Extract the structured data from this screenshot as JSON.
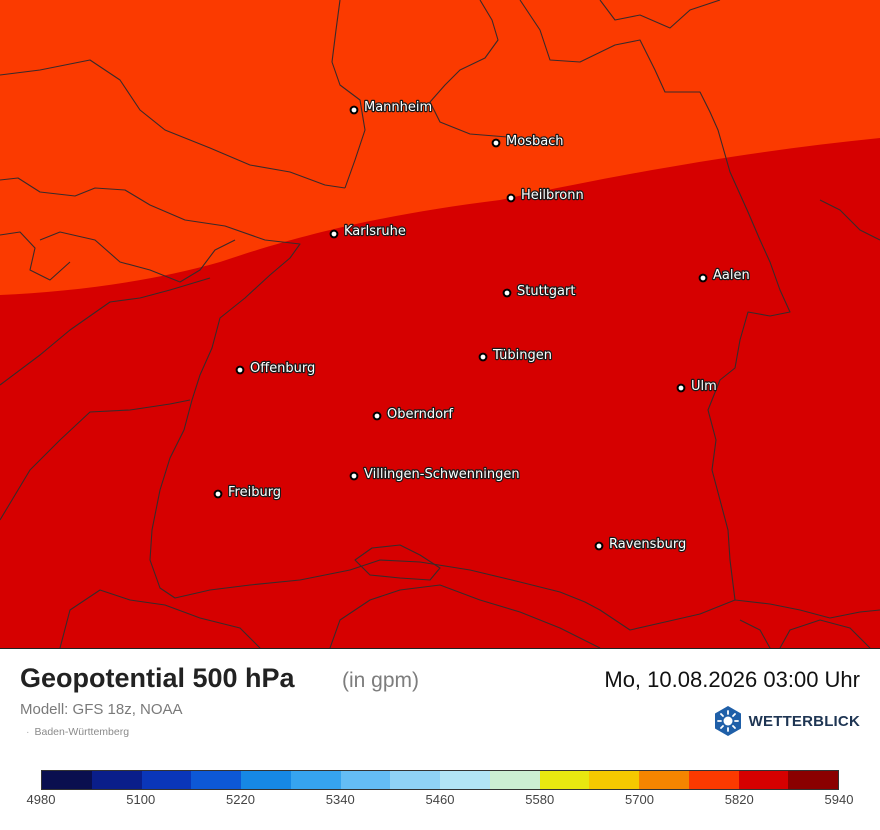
{
  "map": {
    "region_colors": {
      "north_band": "#fb3a00",
      "main": "#d60000",
      "border_lines": "#3a2a2a"
    },
    "cities": [
      {
        "name": "Mannheim"
      },
      {
        "name": "Mosbach"
      },
      {
        "name": "Heilbronn"
      },
      {
        "name": "Karlsruhe"
      },
      {
        "name": "Aalen"
      },
      {
        "name": "Stuttgart"
      },
      {
        "name": "Tübingen"
      },
      {
        "name": "Offenburg"
      },
      {
        "name": "Ulm"
      },
      {
        "name": "Oberndorf"
      },
      {
        "name": "Villingen-Schwenningen"
      },
      {
        "name": "Freiburg"
      },
      {
        "name": "Ravensburg"
      }
    ]
  },
  "footer": {
    "title": "Geopotential 500 hPa",
    "unit": "(in gpm)",
    "datetime": "Mo, 10.08.2026 03:00 Uhr",
    "model": "Modell: GFS 18z, NOAA",
    "region": "Baden-Württemberg",
    "brand": "WETTERBLICK",
    "brand_icon": "wetterblick-logo-icon"
  },
  "colorbar": {
    "colors": [
      "#0a0f4f",
      "#0a1e8a",
      "#0a36b9",
      "#0d58d6",
      "#1688e5",
      "#36a4ef",
      "#64bdf5",
      "#8fd2f6",
      "#b2e4f5",
      "#cbeed3",
      "#e8e810",
      "#f5c800",
      "#f58500",
      "#fb3a00",
      "#d60000",
      "#8b0000"
    ],
    "ticks": [
      "4980",
      "5100",
      "5220",
      "5340",
      "5460",
      "5580",
      "5700",
      "5820",
      "5940"
    ]
  }
}
